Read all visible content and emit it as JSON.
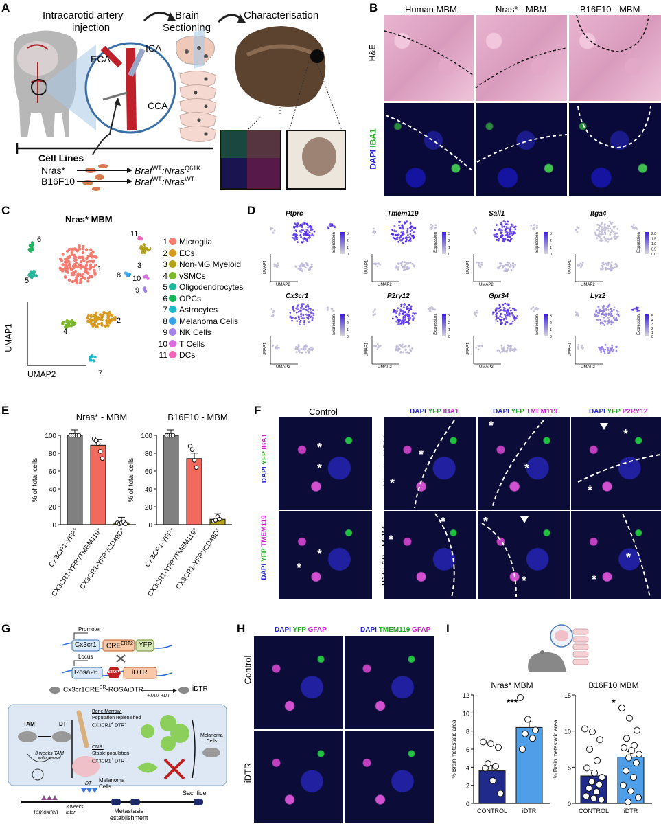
{
  "panels": {
    "A": "A",
    "B": "B",
    "C": "C",
    "D": "D",
    "E": "E",
    "F": "F",
    "G": "G",
    "H": "H",
    "I": "I"
  },
  "panelA": {
    "step1": "Intracarotid artery",
    "step1b": "injection",
    "step2": "Brain",
    "step2b": "Sectioning",
    "step3": "Characterisation",
    "eca": "ECA",
    "ica": "ICA",
    "cca": "CCA",
    "cell_lines": "Cell Lines",
    "line1": "Nras*",
    "line2": "B16F10",
    "geno1_a": "Braf",
    "geno1_b": "WT",
    "geno1_c": ":Nras",
    "geno1_d": "Q61K",
    "geno2_a": "Braf",
    "geno2_b": "WT",
    "geno2_c": ":Nras",
    "geno2_d": "WT"
  },
  "panelB": {
    "col1": "Human MBM",
    "col2": "Nras* - MBM",
    "col3": "B16F10 - MBM",
    "row1": "H&E",
    "row2_dapi": "DAPI",
    "row2_iba1": "IBA1"
  },
  "panelC": {
    "title": "Nras* MBM",
    "xlabel": "UMAP2",
    "ylabel": "UMAP1",
    "legend": [
      {
        "n": "1",
        "label": "Microglia",
        "color": "#f47c70"
      },
      {
        "n": "2",
        "label": "ECs",
        "color": "#d89a1e"
      },
      {
        "n": "3",
        "label": "Non-MG Myeloid",
        "color": "#b2a21a"
      },
      {
        "n": "4",
        "label": "vSMCs",
        "color": "#7cb82c"
      },
      {
        "n": "5",
        "label": "Oligodendrocytes",
        "color": "#21b59a"
      },
      {
        "n": "6",
        "label": "OPCs",
        "color": "#18b35a"
      },
      {
        "n": "7",
        "label": "Astrocytes",
        "color": "#1fb8c8"
      },
      {
        "n": "8",
        "label": "Melanoma Cells",
        "color": "#3aa3e8"
      },
      {
        "n": "9",
        "label": "NK Cells",
        "color": "#a483e8"
      },
      {
        "n": "10",
        "label": "T Cells",
        "color": "#dc6fe0"
      },
      {
        "n": "11",
        "label": "DCs",
        "color": "#f066b8"
      }
    ]
  },
  "panelD": {
    "xlabel": "UMAP2",
    "ylabel": "UMAP1",
    "legend_title": "Expression",
    "genes": [
      {
        "name": "Ptprc",
        "ticks": [
          "3",
          "2",
          "1",
          "0"
        ]
      },
      {
        "name": "Tmem119",
        "ticks": [
          "3",
          "2",
          "1",
          "0"
        ]
      },
      {
        "name": "Sall1",
        "ticks": [
          "3",
          "2",
          "1",
          "0"
        ]
      },
      {
        "name": "Itga4",
        "ticks": [
          "2.0",
          "1.5",
          "1.0",
          "0.5",
          "0.0"
        ]
      },
      {
        "name": "Cx3cr1",
        "ticks": [
          "3",
          "2",
          "1",
          "0"
        ]
      },
      {
        "name": "P2ry12",
        "ticks": [
          "3",
          "2",
          "1",
          "0"
        ]
      },
      {
        "name": "Gpr34",
        "ticks": [
          "3",
          "2",
          "1",
          "0"
        ]
      },
      {
        "name": "Lyz2",
        "ticks": [
          "5",
          "4",
          "3",
          "2",
          "1",
          "0"
        ]
      }
    ]
  },
  "panelE": {
    "charts": [
      {
        "title": "Nras* - MBM",
        "ylabel": "% of total cells",
        "yticks": [
          "100",
          "80",
          "60",
          "40",
          "20",
          "0"
        ],
        "bars": [
          {
            "value": 100,
            "color": "#808080"
          },
          {
            "value": 89,
            "color": "#f26a5e"
          },
          {
            "value": 2,
            "color": "#b8a51a"
          }
        ],
        "points": [
          [
            100,
            100,
            100,
            100,
            100
          ],
          [
            96,
            94,
            91,
            82,
            74
          ],
          [
            2,
            1,
            2,
            3,
            1
          ]
        ]
      },
      {
        "title": "B16F10 - MBM",
        "ylabel": "% of total cells",
        "yticks": [
          "100",
          "80",
          "60",
          "40",
          "20",
          "0"
        ],
        "bars": [
          {
            "value": 100,
            "color": "#808080"
          },
          {
            "value": 74,
            "color": "#f26a5e"
          },
          {
            "value": 6,
            "color": "#b8a51a"
          }
        ],
        "points": [
          [
            100,
            100,
            100,
            100
          ],
          [
            88,
            84,
            72,
            64
          ],
          [
            4,
            5,
            9,
            6
          ]
        ]
      }
    ],
    "cat1": "CX3CR1-YFP",
    "cat1s": "+",
    "cat2": "CX3CR1-YFP",
    "cat2s": "+",
    "cat2b": "/TMEM119",
    "cat2bs": "+",
    "cat3": "CX3CR1-YFP",
    "cat3s": "+",
    "cat3b": "/CD49D",
    "cat3bs": "+"
  },
  "panelF": {
    "control": "Control",
    "row1": "Nras* - MBM",
    "row2": "B16F10 - MBM",
    "ctrl1": [
      "DAPI",
      "YFP",
      "IBA1"
    ],
    "ctrl2": [
      "DAPI",
      "YFP",
      "TMEM119"
    ],
    "col1": [
      "DAPI",
      "YFP",
      "IBA1"
    ],
    "col2": [
      "DAPI",
      "YFP",
      "TMEM119"
    ],
    "col3": [
      "DAPI",
      "YFP",
      "P2RY12"
    ],
    "star": "*"
  },
  "panelG": {
    "promoter": "Promoter",
    "cx3cr1": "Cx3cr1",
    "cre": "CRE",
    "cre_sup": "ERT2",
    "yfp": "YFP",
    "locus": "Locus",
    "rosa": "Rosa26",
    "stop": "STOP",
    "idtr": "iDTR",
    "cross": "Cx3cr1CRE",
    "cross_sup": "ER",
    "cross_b": "-ROSAiDTR",
    "arrow_lbl": "+TAM +DT",
    "result": "iDTR",
    "tam": "TAM",
    "dt": "DT",
    "withdraw": "3 weeks TAM withdrawal",
    "bm_title": "Bone Marrow:",
    "bm_text": "Population replenished",
    "bm_text2": "CX3CR1",
    "bm_sup": "+",
    "bm_text3": " DTR",
    "bm_sup2": "-",
    "cns_title": "CNS:",
    "cns_text": "Stable population",
    "cns_text2": "CX3CR1",
    "cns_sup": "+",
    "cns_text3": " DTR",
    "cns_sup2": "+",
    "melanoma": "Melanoma",
    "cells": "Cells",
    "tl_dt": "DT",
    "tl_mel": "Melanoma",
    "tl_cells": "Cells",
    "tl_sac": "Sacrifice",
    "tl_tam": "Tamoxifen",
    "tl_3w": "3 weeks",
    "tl_later": "later",
    "tl_met": "Metastasis",
    "tl_est": "establishment"
  },
  "panelH": {
    "col1": [
      "DAPI",
      "YFP",
      "GFAP"
    ],
    "col2": [
      "DAPI",
      "TMEM119",
      "GFAP"
    ],
    "row1": "Control",
    "row2": "iDTR"
  },
  "panelI": {
    "charts": [
      {
        "title": "Nras* MBM",
        "ylabel": "% Brain metastatic area",
        "yticks": [
          "12",
          "10",
          "8",
          "6",
          "4",
          "2",
          "0"
        ],
        "ymax": 12,
        "sig": "***",
        "cats": [
          "CONTROL",
          "iDTR"
        ],
        "bars": [
          {
            "value": 3.6,
            "color": "#1f2a8a"
          },
          {
            "value": 8.4,
            "color": "#4f9ee8"
          }
        ],
        "points": [
          [
            6.8,
            6.6,
            6.2,
            4.4,
            4.1,
            3.9,
            2.5,
            1.1
          ],
          [
            11.7,
            9.3,
            8.1,
            7.7,
            7.2,
            6.0
          ]
        ]
      },
      {
        "title": "B16F10 MBM",
        "ylabel": "% Brain metastatic area",
        "yticks": [
          "15",
          "10",
          "5",
          "0"
        ],
        "ymax": 15,
        "sig": "*",
        "cats": [
          "CONTROL",
          "iDTR"
        ],
        "bars": [
          {
            "value": 3.8,
            "color": "#1f2a8a"
          },
          {
            "value": 6.4,
            "color": "#4f9ee8"
          }
        ],
        "points": [
          [
            10.3,
            9.9,
            8.8,
            7.5,
            5.9,
            4.9,
            4.2,
            3.6,
            3.0,
            2.6,
            2.1,
            1.6,
            1.0,
            0.7,
            0.5
          ],
          [
            13.2,
            11.8,
            10.1,
            9.0,
            8.0,
            7.7,
            7.3,
            6.8,
            6.3,
            5.6,
            4.5,
            3.6,
            2.5,
            1.7,
            0.8,
            0.2
          ]
        ]
      }
    ]
  }
}
